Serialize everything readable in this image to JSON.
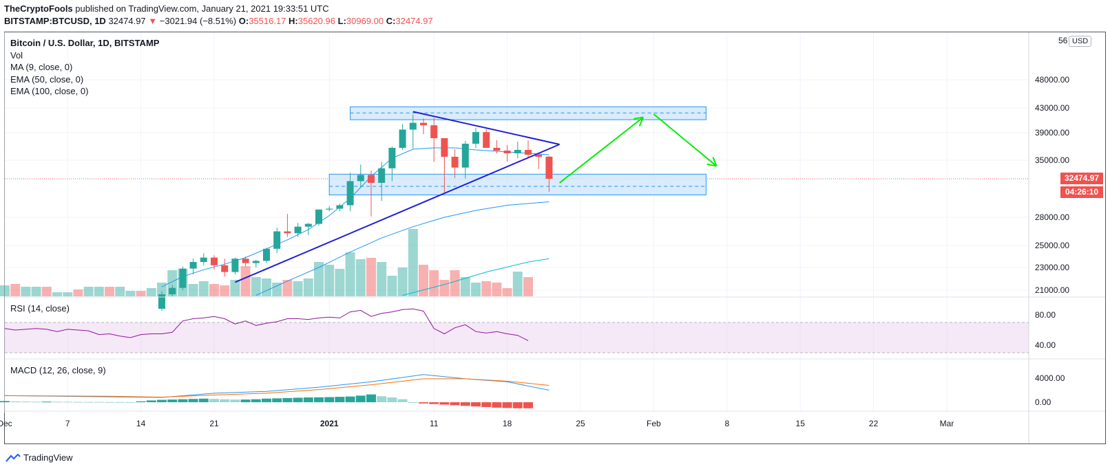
{
  "header": {
    "author": "TheCryptoFools",
    "published": "published on TradingView.com, January 21, 2021 19:33:51 UTC",
    "symbol": "BITSTAMP:BTCUSD, 1D",
    "last": "32474.97",
    "change": "−3021.94 (−8.51%)",
    "o_label": "O:",
    "o_value": "35516.17",
    "h_label": "H:",
    "h_value": "35620.96",
    "l_label": "L:",
    "l_value": "30969.00",
    "c_label": "C:",
    "c_value": "32474.97"
  },
  "legend": {
    "symbol": "Bitcoin / U.S. Dollar, 1D, BITSTAMP",
    "vol": "Vol",
    "ma": "MA (9, close, 0)",
    "ema50": "EMA (50, close, 0)",
    "ema100": "EMA (100, close, 0)"
  },
  "rsi_label": "RSI (14, close)",
  "macd_label": "MACD (12, 26, close, 9)",
  "currency": "USD",
  "price_tag": "32474.97",
  "countdown": "04:26:10",
  "footer_brand": "TradingView",
  "colors": {
    "up": "#26a69a",
    "down": "#ef5350",
    "ma": "#2196f3",
    "ema50": "#2196f3",
    "ema100": "#00bcd4",
    "triangle": "#1f1fd6",
    "arrow": "#00ee00",
    "zone": "#cfe6fb",
    "rsi": "#8e1599",
    "macd": "#2196f3",
    "signal": "#ff6d00"
  },
  "chart_data": {
    "type": "candlestick",
    "price_ticks": [
      {
        "v": 48000,
        "label": "48000.00"
      },
      {
        "v": 43000,
        "label": "43000.00"
      },
      {
        "v": 39000,
        "label": "39000.00"
      },
      {
        "v": 35000,
        "label": "35000.00"
      },
      {
        "v": 28000,
        "label": "28000.00"
      },
      {
        "v": 25000,
        "label": "25000.00"
      },
      {
        "v": 23000,
        "label": "23000.00"
      },
      {
        "v": 21000,
        "label": "21000.00"
      }
    ],
    "price_top_label": "56",
    "x_ticks": [
      {
        "d": 0,
        "label": "Dec"
      },
      {
        "d": 6,
        "label": "7"
      },
      {
        "d": 13,
        "label": "14"
      },
      {
        "d": 20,
        "label": "21"
      },
      {
        "d": 31,
        "label": "2021"
      },
      {
        "d": 41,
        "label": "11"
      },
      {
        "d": 48,
        "label": "18"
      },
      {
        "d": 55,
        "label": "25"
      },
      {
        "d": 62,
        "label": "Feb"
      },
      {
        "d": 69,
        "label": "8"
      },
      {
        "d": 76,
        "label": "15"
      },
      {
        "d": 83,
        "label": "22"
      },
      {
        "d": 90,
        "label": "Mar"
      }
    ],
    "candles_start_day": 15,
    "candles": [
      [
        19200,
        20900,
        19000,
        20600
      ],
      [
        20600,
        21450,
        20400,
        21200
      ],
      [
        21200,
        23100,
        21000,
        22900
      ],
      [
        22900,
        23800,
        22400,
        23500
      ],
      [
        23500,
        24300,
        23200,
        23900
      ],
      [
        23900,
        24100,
        22800,
        23200
      ],
      [
        23200,
        23800,
        22200,
        22600
      ],
      [
        22600,
        23900,
        22400,
        23800
      ],
      [
        23800,
        24000,
        23100,
        23400
      ],
      [
        23400,
        23700,
        23000,
        23600
      ],
      [
        23600,
        24800,
        23400,
        24700
      ],
      [
        24700,
        26900,
        24300,
        26500
      ],
      [
        26500,
        28400,
        25900,
        26300
      ],
      [
        26300,
        27400,
        25900,
        27000
      ],
      [
        27000,
        27400,
        26100,
        27300
      ],
      [
        27300,
        28900,
        27100,
        28900
      ],
      [
        28900,
        29300,
        28700,
        29000
      ],
      [
        29000,
        29600,
        28700,
        29400
      ],
      [
        29400,
        33300,
        28700,
        32200
      ],
      [
        32200,
        34400,
        31500,
        33000
      ],
      [
        33000,
        33600,
        28100,
        32000
      ],
      [
        32000,
        34800,
        29900,
        33900
      ],
      [
        33900,
        37000,
        32200,
        36800
      ],
      [
        36800,
        40400,
        36500,
        39500
      ],
      [
        39500,
        41900,
        36700,
        40600
      ],
      [
        40600,
        41300,
        38800,
        40200
      ],
      [
        40200,
        41400,
        34800,
        38200
      ],
      [
        38200,
        38200,
        30700,
        35500
      ],
      [
        35500,
        36600,
        32600,
        34000
      ],
      [
        34000,
        37800,
        32500,
        37400
      ],
      [
        37400,
        39800,
        36800,
        39100
      ],
      [
        39100,
        39600,
        36900,
        36800
      ],
      [
        36800,
        37900,
        36000,
        36400
      ],
      [
        36400,
        37200,
        34800,
        36000
      ],
      [
        36000,
        37700,
        35300,
        36500
      ],
      [
        36500,
        37900,
        35400,
        35800
      ],
      [
        35800,
        35900,
        33800,
        35500
      ],
      [
        35516.17,
        35620.96,
        30969.0,
        32474.97
      ]
    ],
    "volumes": [
      8,
      9,
      7,
      7,
      7,
      3,
      3,
      5,
      7,
      7,
      7,
      7,
      4,
      4,
      6,
      10,
      19,
      20,
      9,
      11,
      9,
      8,
      12,
      22,
      14,
      13,
      10,
      12,
      11,
      13,
      25,
      23,
      20,
      32,
      27,
      28,
      25,
      15,
      21,
      49,
      23,
      19,
      12,
      19,
      14,
      10,
      11,
      10,
      6,
      18,
      14
    ],
    "volume_start_day": 0,
    "ma9": [
      [
        15,
        21300
      ],
      [
        17,
        22200
      ],
      [
        19,
        22800
      ],
      [
        21,
        23300
      ],
      [
        23,
        23900
      ],
      [
        25,
        24700
      ],
      [
        27,
        25600
      ],
      [
        29,
        26700
      ],
      [
        31,
        28200
      ],
      [
        33,
        30200
      ],
      [
        35,
        32800
      ],
      [
        37,
        35300
      ],
      [
        39,
        36600
      ],
      [
        41,
        36800
      ],
      [
        43,
        36800
      ],
      [
        45,
        36500
      ],
      [
        47,
        36300
      ],
      [
        49,
        36100
      ],
      [
        52,
        35800
      ]
    ],
    "ema50": [
      [
        24,
        20500
      ],
      [
        27,
        21800
      ],
      [
        30,
        23000
      ],
      [
        33,
        24400
      ],
      [
        36,
        25800
      ],
      [
        39,
        27000
      ],
      [
        42,
        28000
      ],
      [
        45,
        28800
      ],
      [
        48,
        29400
      ],
      [
        52,
        29800
      ]
    ],
    "ema100": [
      [
        38,
        20500
      ],
      [
        42,
        21500
      ],
      [
        46,
        22600
      ],
      [
        50,
        23500
      ],
      [
        52,
        23800
      ]
    ],
    "triangle": {
      "apex": [
        53,
        37300
      ],
      "upper_start": [
        39,
        42400
      ],
      "lower_start": [
        22,
        21700
      ]
    },
    "zones": [
      {
        "from": 33,
        "to": 67,
        "hi": 43200,
        "lo": 41100,
        "mid": 42200
      },
      {
        "from": 31,
        "to": 67,
        "hi": 33100,
        "lo": 30600,
        "mid": 31600
      }
    ],
    "arrows": [
      {
        "from": [
          53,
          32000
        ],
        "to": [
          61,
          41500
        ]
      },
      {
        "from": [
          62,
          42000
        ],
        "to": [
          68,
          34200
        ]
      }
    ],
    "rsi": {
      "ticks": [
        {
          "v": 80,
          "label": "80.00"
        },
        {
          "v": 40,
          "label": "40.00"
        }
      ],
      "band": [
        70,
        30
      ],
      "values": [
        62,
        60,
        61,
        62,
        61,
        58,
        61,
        60,
        59,
        54,
        55,
        52,
        50,
        54,
        55,
        55,
        57,
        72,
        75,
        76,
        78,
        75,
        68,
        72,
        66,
        69,
        71,
        75,
        75,
        74,
        76,
        77,
        76,
        84,
        86,
        78,
        82,
        84,
        87,
        88,
        85,
        62,
        55,
        63,
        67,
        58,
        56,
        58,
        55,
        53,
        46
      ]
    },
    "macd": {
      "ticks": [
        {
          "v": 4000,
          "label": "4000.00"
        },
        {
          "v": 0,
          "label": "0.00"
        }
      ],
      "macd": [
        [
          0,
          1100
        ],
        [
          10,
          900
        ],
        [
          15,
          800
        ],
        [
          20,
          1500
        ],
        [
          25,
          1800
        ],
        [
          30,
          2500
        ],
        [
          35,
          3400
        ],
        [
          40,
          4600
        ],
        [
          44,
          3900
        ],
        [
          48,
          3400
        ],
        [
          52,
          2000
        ]
      ],
      "signal": [
        [
          0,
          1100
        ],
        [
          10,
          1000
        ],
        [
          15,
          850
        ],
        [
          20,
          1200
        ],
        [
          25,
          1500
        ],
        [
          30,
          2100
        ],
        [
          35,
          2900
        ],
        [
          40,
          3900
        ],
        [
          44,
          3900
        ],
        [
          48,
          3500
        ],
        [
          52,
          2800
        ]
      ],
      "hist": [
        200,
        150,
        120,
        100,
        100,
        90,
        80,
        70,
        60,
        50,
        40,
        30,
        20,
        150,
        300,
        400,
        450,
        500,
        550,
        600,
        550,
        500,
        450,
        450,
        500,
        600,
        650,
        700,
        750,
        800,
        820,
        850,
        900,
        950,
        1100,
        1300,
        1000,
        800,
        500,
        0,
        -200,
        -300,
        -400,
        -500,
        -600,
        -700,
        -800,
        -900,
        -950,
        -1000,
        -1000
      ]
    }
  }
}
